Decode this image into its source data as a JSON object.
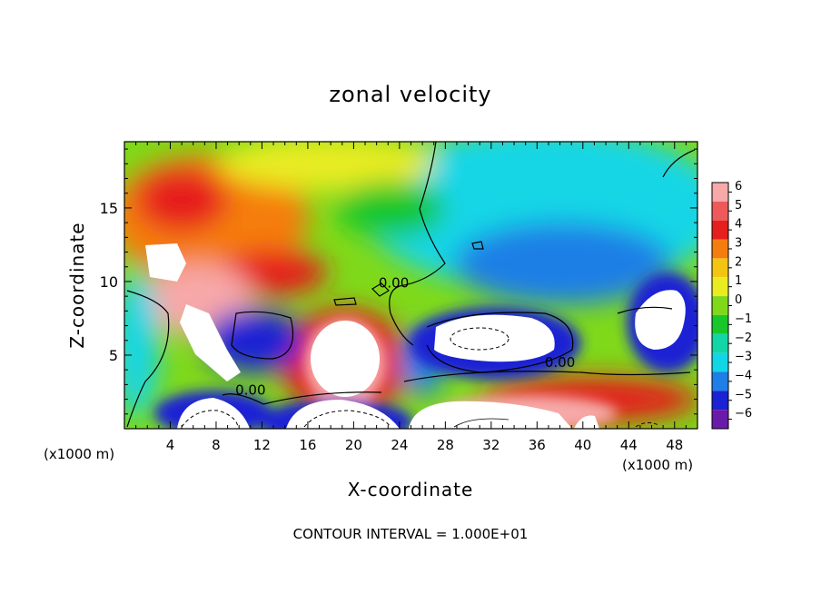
{
  "chart_data": {
    "type": "heatmap",
    "title": "zonal velocity",
    "xlabel": "X-coordinate",
    "ylabel": "Z-coordinate",
    "x_unit_label": "(x1000 m)",
    "x_unit_label_right": "(x1000 m)",
    "footer": "CONTOUR INTERVAL = 1.000E+01",
    "xlim": [
      0,
      50
    ],
    "ylim": [
      0,
      19.5
    ],
    "x_ticks": [
      4,
      8,
      12,
      16,
      20,
      24,
      28,
      32,
      36,
      40,
      44,
      48
    ],
    "x_tick_labels": [
      "4",
      "8",
      "12",
      "16",
      "20",
      "24",
      "28",
      "32",
      "36",
      "40",
      "44",
      "48"
    ],
    "y_ticks": [
      5,
      10,
      15
    ],
    "y_tick_labels": [
      "5",
      "10",
      "15"
    ],
    "colorbar": {
      "levels": [
        6,
        5,
        4,
        3,
        2,
        1,
        0,
        -1,
        -2,
        -3,
        -4,
        -5,
        -6
      ],
      "labels": [
        "6",
        "5",
        "4",
        "3",
        "2",
        "1",
        "0",
        "−1",
        "−2",
        "−3",
        "−4",
        "−5",
        "−6"
      ],
      "colors": [
        "#f7a8a8",
        "#ee5a5a",
        "#e61e1e",
        "#f57d10",
        "#f3c512",
        "#e8ec20",
        "#7fd91a",
        "#18c72a",
        "#12d6a6",
        "#12d6e6",
        "#1f7fe6",
        "#1a22d4",
        "#6a1aa8"
      ]
    },
    "contour_labels": [
      {
        "text": "0.00",
        "x": 23.5,
        "y": 9.6
      },
      {
        "text": "0.00",
        "x": 38.0,
        "y": 4.2
      },
      {
        "text": "0.00",
        "x": 11.0,
        "y": 2.3
      }
    ],
    "grid": false
  }
}
